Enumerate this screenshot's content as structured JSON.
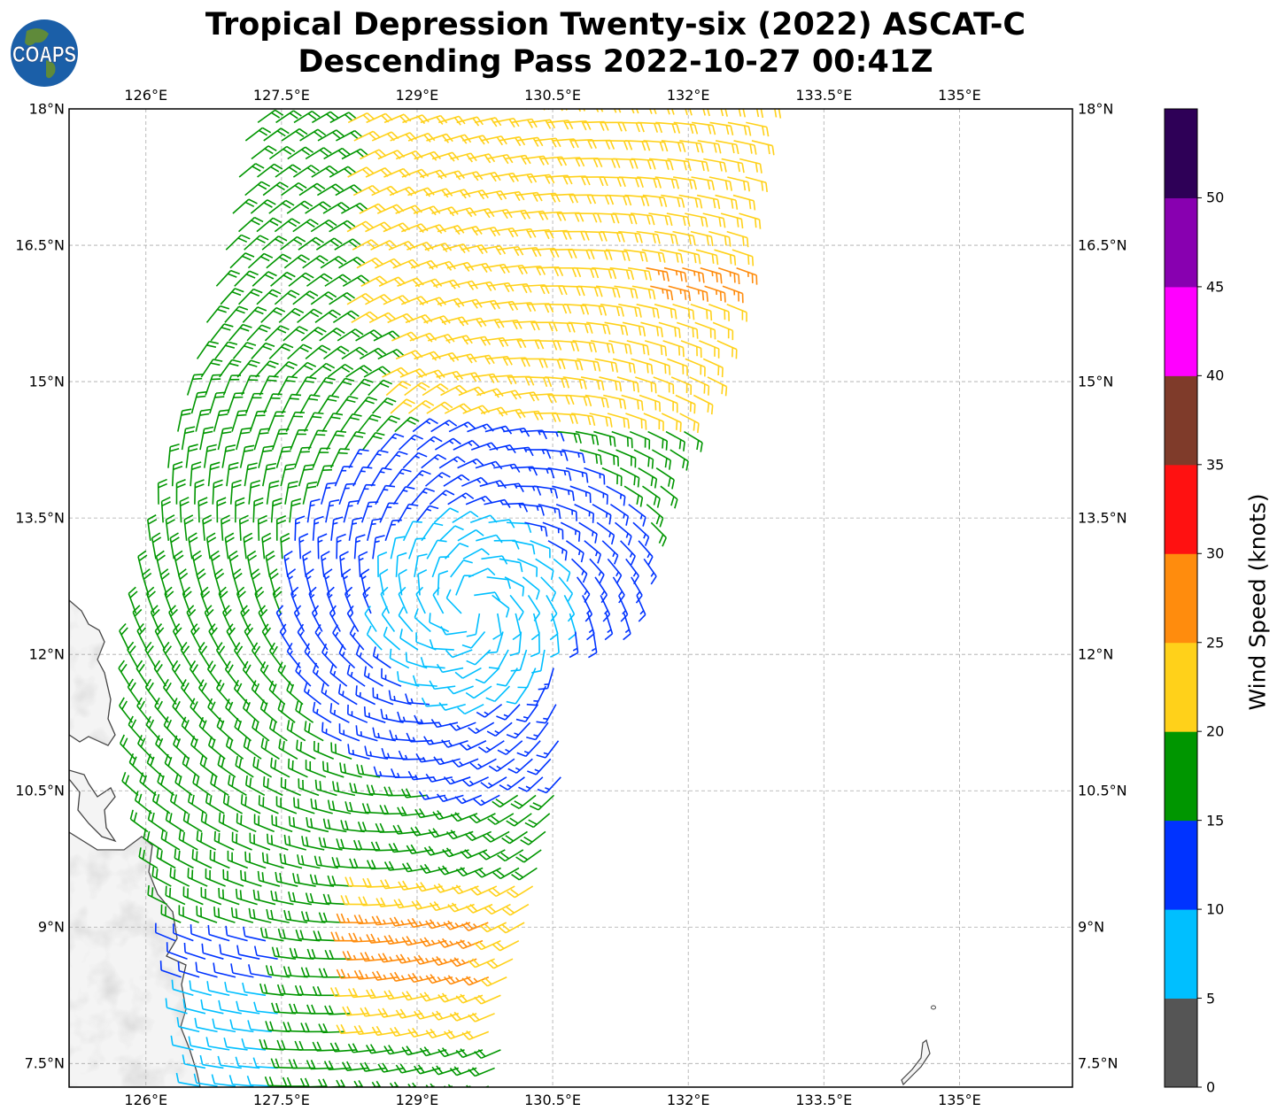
{
  "title": {
    "line1": "Tropical Depression Twenty-six (2022) ASCAT-C",
    "line2": "Descending Pass 2022-10-27 00:41Z"
  },
  "logo": {
    "text": "COAPS",
    "icon": "globe-logo-icon"
  },
  "axes": {
    "lon_ticks": [
      "126°E",
      "127.5°E",
      "129°E",
      "130.5°E",
      "132°E",
      "133.5°E",
      "135°E"
    ],
    "lon_values": [
      126,
      127.5,
      129,
      130.5,
      132,
      133.5,
      135
    ],
    "lat_ticks": [
      "18°N",
      "16.5°N",
      "15°N",
      "13.5°N",
      "12°N",
      "10.5°N",
      "9°N",
      "7.5°N"
    ],
    "lat_values": [
      18,
      16.5,
      15,
      13.5,
      12,
      10.5,
      9,
      7.5
    ],
    "lon_range": [
      125.15,
      136.25
    ],
    "lat_range": [
      7.24,
      18
    ]
  },
  "colorbar": {
    "title": "Wind Speed (knots)",
    "tick_labels": [
      "0",
      "5",
      "10",
      "15",
      "20",
      "25",
      "30",
      "35",
      "40",
      "45",
      "50"
    ],
    "bounds": [
      0,
      5,
      10,
      15,
      20,
      25,
      30,
      35,
      40,
      45,
      50,
      55
    ],
    "colors": [
      "#555555",
      "#00bfff",
      "#0033ff",
      "#009600",
      "#ffd11a",
      "#ff8c0d",
      "#ff1111",
      "#7f3b2a",
      "#ff00ff",
      "#8800b0",
      "#2e0057"
    ]
  }
}
